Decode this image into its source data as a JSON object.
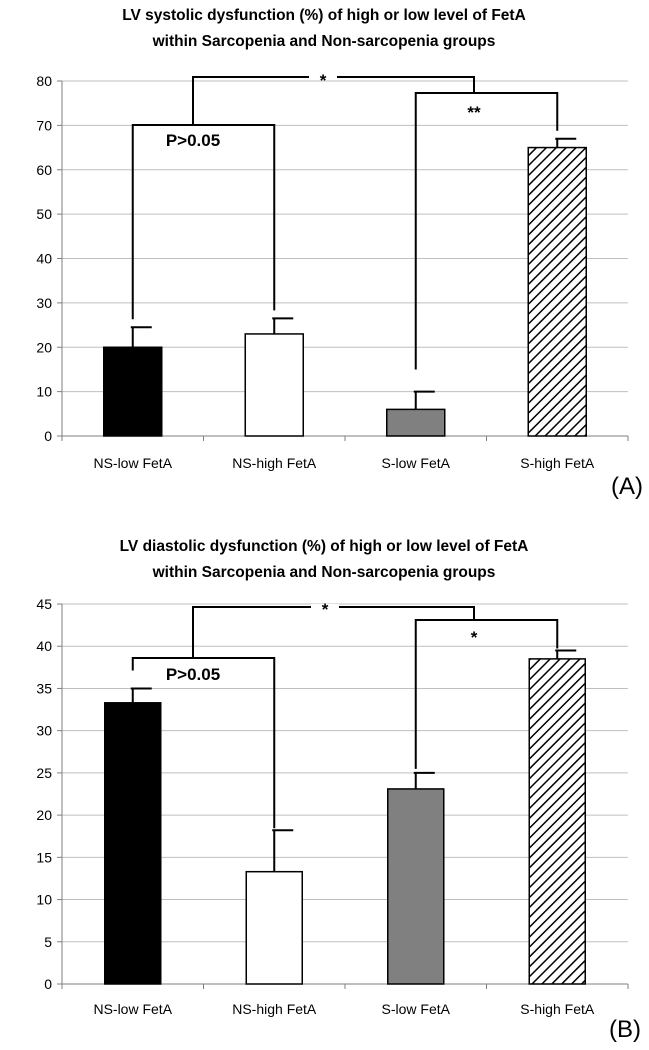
{
  "chart_data": [
    {
      "type": "bar",
      "panel_label": "(A)",
      "title_line1": "LV systolic dysfunction (%) of high or low level of FetA",
      "title_line2": "within Sarcopenia and Non-sarcopenia groups",
      "categories": [
        "NS-low FetA",
        "NS-high FetA",
        "S-low FetA",
        "S-high FetA"
      ],
      "values": [
        20,
        23,
        6,
        65
      ],
      "errors": [
        4.5,
        3.5,
        4,
        2
      ],
      "fills": [
        "solid-black",
        "white",
        "gray",
        "hatched"
      ],
      "ylim": [
        0,
        80
      ],
      "yticks": [
        0,
        10,
        20,
        30,
        40,
        50,
        60,
        70,
        80
      ],
      "grid": true,
      "annotations": [
        {
          "label": "P>0.05",
          "between": [
            "NS-low FetA",
            "NS-high FetA"
          ]
        },
        {
          "label": "**",
          "between": [
            "S-low FetA",
            "S-high FetA"
          ]
        },
        {
          "label": "*",
          "between": [
            "Non-sarcopenia groups",
            "Sarcopenia groups"
          ]
        }
      ]
    },
    {
      "type": "bar",
      "panel_label": "(B)",
      "title_line1": "LV diastolic dysfunction (%) of high or low level of FetA",
      "title_line2": "within Sarcopenia and Non-sarcopenia groups",
      "categories": [
        "NS-low FetA",
        "NS-high FetA",
        "S-low FetA",
        "S-high FetA"
      ],
      "values": [
        33.3,
        13.3,
        23.1,
        38.5
      ],
      "errors": [
        1.7,
        4.9,
        1.9,
        1.0
      ],
      "fills": [
        "solid-black",
        "white",
        "gray",
        "hatched"
      ],
      "ylim": [
        0,
        45
      ],
      "yticks": [
        0,
        5,
        10,
        15,
        20,
        25,
        30,
        35,
        40,
        45
      ],
      "grid": true,
      "annotations": [
        {
          "label": "P>0.05",
          "between": [
            "NS-low FetA",
            "NS-high FetA"
          ]
        },
        {
          "label": "*",
          "between": [
            "S-low FetA",
            "S-high FetA"
          ]
        },
        {
          "label": "*",
          "between": [
            "Non-sarcopenia groups",
            "Sarcopenia groups"
          ]
        }
      ]
    }
  ]
}
